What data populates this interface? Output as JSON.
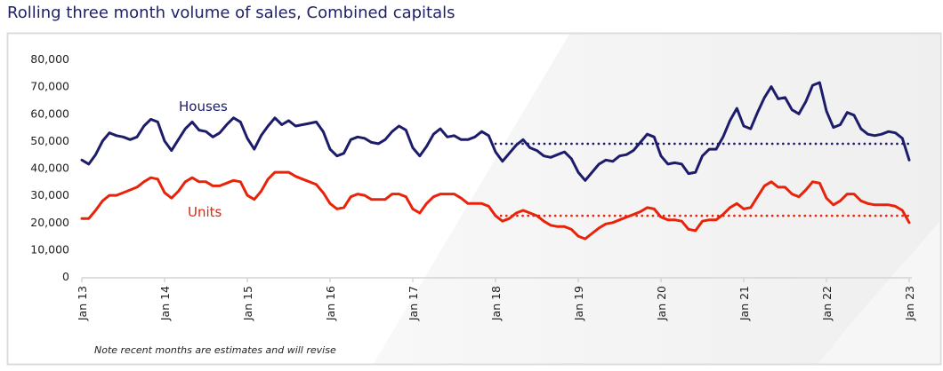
{
  "chart_data": {
    "type": "line",
    "title": "Rolling three month volume of sales, Combined capitals",
    "note": "Note recent months are estimates and will revise",
    "x_start": "Jan 13",
    "x_end": "Jan 23",
    "frequency": "monthly",
    "x_tick_labels": [
      "Jan 13",
      "Jan 14",
      "Jan 15",
      "Jan 16",
      "Jan 17",
      "Jan 18",
      "Jan 19",
      "Jan 20",
      "Jan 21",
      "Jan 22",
      "Jan 23"
    ],
    "y_tick_labels": [
      "0",
      "10,000",
      "20,000",
      "30,000",
      "40,000",
      "50,000",
      "60,000",
      "70,000",
      "80,000"
    ],
    "ylim": [
      0,
      80000
    ],
    "grid": false,
    "legend": "inline labels",
    "series": [
      {
        "name": "Houses",
        "color": "#1c1c6b",
        "values": [
          43000,
          41500,
          45000,
          50000,
          53000,
          52000,
          51500,
          50500,
          51500,
          55500,
          58000,
          57000,
          50000,
          46500,
          50500,
          54500,
          57000,
          54000,
          53500,
          51500,
          53000,
          56000,
          58500,
          57000,
          51000,
          47000,
          52000,
          55500,
          58500,
          56000,
          57500,
          55500,
          56000,
          56500,
          57000,
          53500,
          47000,
          44500,
          45500,
          50500,
          51500,
          51000,
          49500,
          49000,
          50500,
          53500,
          55500,
          54000,
          47500,
          44500,
          48000,
          52500,
          54500,
          51500,
          52000,
          50500,
          50500,
          51500,
          53500,
          52000,
          46000,
          42500,
          45500,
          48500,
          50500,
          47500,
          46500,
          44500,
          44000,
          45000,
          46000,
          43500,
          38500,
          35500,
          38500,
          41500,
          43000,
          42500,
          44500,
          45000,
          46500,
          49500,
          52500,
          51500,
          44500,
          41500,
          42000,
          41500,
          38000,
          38500,
          44500,
          47000,
          47000,
          51500,
          57500,
          62000,
          55500,
          54500,
          60500,
          66000,
          70000,
          65500,
          66000,
          61500,
          60000,
          64500,
          70500,
          71500,
          61000,
          55000,
          56000,
          60500,
          59500,
          54500,
          52500,
          52000,
          52500,
          53500,
          53000,
          51000,
          43000
        ],
        "average": {
          "value": 49000,
          "from": "Jan 18",
          "to": "Jan 23",
          "style": "dotted"
        }
      },
      {
        "name": "Units",
        "color": "#e8230a",
        "values": [
          21500,
          21500,
          24500,
          28000,
          30000,
          30000,
          31000,
          32000,
          33000,
          35000,
          36500,
          36000,
          31000,
          29000,
          31500,
          35000,
          36500,
          35000,
          35000,
          33500,
          33500,
          34500,
          35500,
          35000,
          30000,
          28500,
          31500,
          36000,
          38500,
          38500,
          38500,
          37000,
          36000,
          35000,
          34000,
          31000,
          27000,
          25000,
          25500,
          29500,
          30500,
          30000,
          28500,
          28500,
          28500,
          30500,
          30500,
          29500,
          25000,
          23500,
          27000,
          29500,
          30500,
          30500,
          30500,
          29000,
          27000,
          27000,
          27000,
          26000,
          22500,
          20500,
          21500,
          23500,
          24500,
          23500,
          22500,
          20500,
          19000,
          18500,
          18500,
          17500,
          15000,
          14000,
          16000,
          18000,
          19500,
          20000,
          21000,
          22000,
          23000,
          24000,
          25500,
          25000,
          22000,
          21000,
          21000,
          20500,
          17500,
          17000,
          20500,
          21000,
          21000,
          23000,
          25500,
          27000,
          25000,
          25500,
          29500,
          33500,
          35000,
          33000,
          33000,
          30500,
          29500,
          32000,
          35000,
          34500,
          29000,
          26500,
          28000,
          30500,
          30500,
          28000,
          27000,
          26500,
          26500,
          26500,
          26000,
          24500,
          20000
        ],
        "average": {
          "value": 22500,
          "from": "Jan 18",
          "to": "Jan 23",
          "style": "dotted"
        }
      }
    ]
  }
}
